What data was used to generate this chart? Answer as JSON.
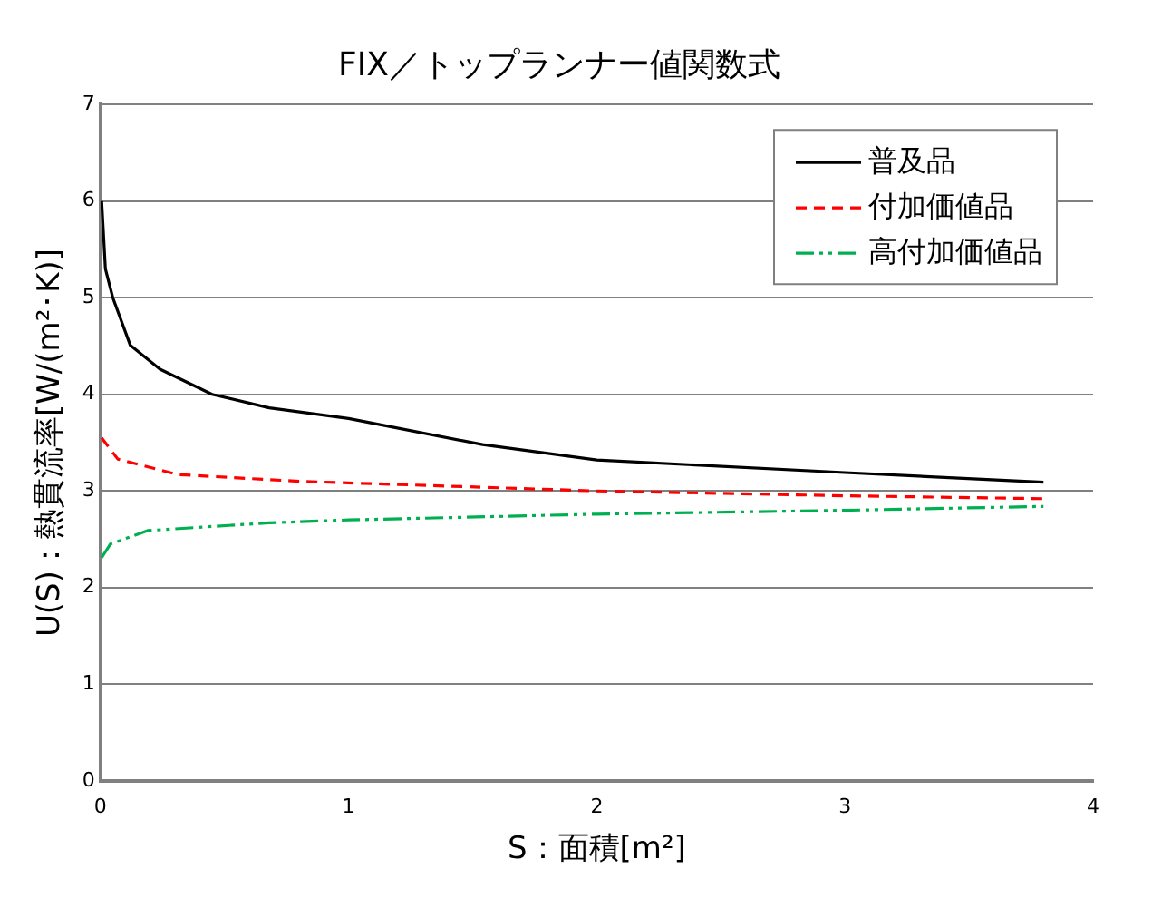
{
  "chart_data": {
    "type": "line",
    "title": "FIX／トップランナー値関数式",
    "xlabel": "S：面積[m²]",
    "ylabel": "U(S)：熱貫流率[W/(m²･K)]",
    "xlim": [
      0,
      4
    ],
    "xticks": [
      0,
      1,
      2,
      3,
      4
    ],
    "ylim": [
      0,
      7
    ],
    "yticks": [
      0,
      1,
      2,
      3,
      4,
      5,
      6,
      7
    ],
    "grid": "y",
    "legend": "top right",
    "marker": "none",
    "series": [
      {
        "name": "普及品",
        "color": "#000000",
        "line_style": "solid",
        "x": [
          0.005,
          0.02,
          0.05,
          0.12,
          0.24,
          0.45,
          0.68,
          1,
          1.54,
          2,
          3,
          3.8
        ],
        "values": [
          6.0,
          5.3,
          5.0,
          4.51,
          4.26,
          4.0,
          3.86,
          3.75,
          3.48,
          3.32,
          3.19,
          3.09
        ]
      },
      {
        "name": "付加価値品",
        "color": "#ff0000",
        "line_style": "dashed",
        "x": [
          0.005,
          0.07,
          0.31,
          0.8,
          2,
          3,
          3.8
        ],
        "values": [
          3.55,
          3.33,
          3.17,
          3.1,
          3.0,
          2.95,
          2.92
        ]
      },
      {
        "name": "高付加価値品",
        "color": "#00b050",
        "line_style": "dashdot",
        "x": [
          0.005,
          0.04,
          0.19,
          0.68,
          1,
          2,
          3,
          3.8
        ],
        "values": [
          2.31,
          2.45,
          2.59,
          2.67,
          2.7,
          2.76,
          2.8,
          2.84
        ]
      }
    ]
  }
}
